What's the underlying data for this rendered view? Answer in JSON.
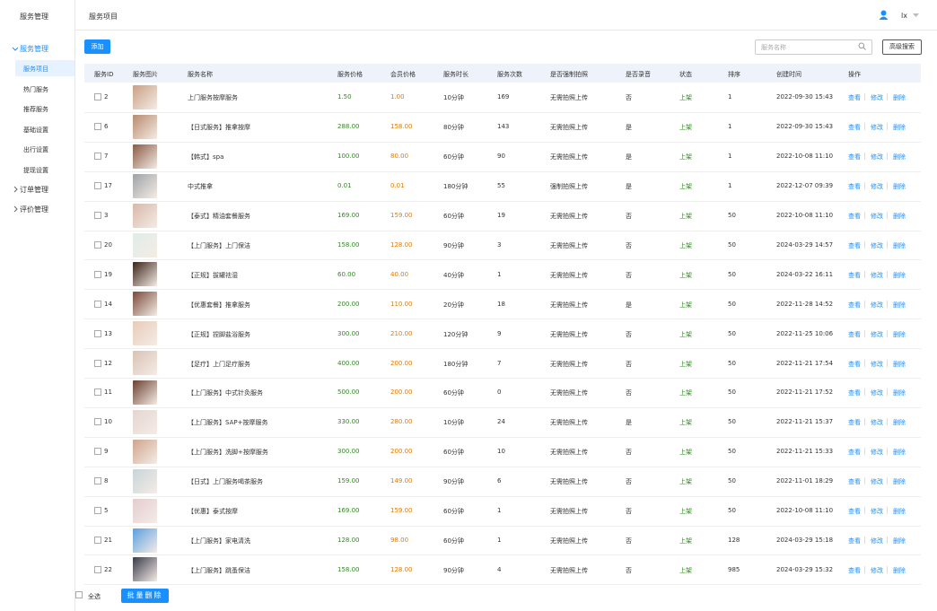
{
  "sidebar": {
    "title": "服务管理",
    "menu": [
      {
        "label": "服务管理",
        "children": [
          "服务项目",
          "热门服务",
          "推荐服务",
          "基础设置",
          "出行设置",
          "提现设置"
        ]
      },
      {
        "label": "订单管理"
      },
      {
        "label": "评价管理"
      }
    ]
  },
  "header": {
    "breadcrumb": "服务项目",
    "user": "lx"
  },
  "toolbar": {
    "add": "添加",
    "search_placeholder": "服务名称",
    "advanced_search": "高级搜索"
  },
  "table": {
    "columns": [
      "服务ID",
      "服务图片",
      "服务名称",
      "服务价格",
      "会员价格",
      "服务时长",
      "服务次数",
      "是否强制拍照",
      "是否录音",
      "状态",
      "排序",
      "创建时间",
      "操作"
    ],
    "rows": [
      [
        2,
        "上门服务按摩服务",
        "1.50",
        "1.00",
        "10分钟",
        169,
        "无需拍照上传",
        "否",
        "上架",
        1,
        "2022-09-30 15:43"
      ],
      [
        6,
        "【日式服务】推拿按摩",
        "288.00",
        "158.00",
        "80分钟",
        143,
        "无需拍照上传",
        "是",
        "上架",
        1,
        "2022-09-30 15:43"
      ],
      [
        7,
        "【韩式】spa",
        "100.00",
        "80.00",
        "60分钟",
        90,
        "无需拍照上传",
        "是",
        "上架",
        1,
        "2022-10-08 11:10"
      ],
      [
        17,
        "中式推拿",
        "0.01",
        "0.01",
        "180分钟",
        55,
        "强制拍照上传",
        "是",
        "上架",
        1,
        "2022-12-07 09:39"
      ],
      [
        3,
        "【泰式】精油套餐服务",
        "169.00",
        "159.00",
        "60分钟",
        19,
        "无需拍照上传",
        "否",
        "上架",
        50,
        "2022-10-08 11:10"
      ],
      [
        20,
        "【上门服务】上门保洁",
        "158.00",
        "128.00",
        "90分钟",
        3,
        "无需拍照上传",
        "否",
        "上架",
        50,
        "2024-03-29 14:57"
      ],
      [
        19,
        "【正规】拔罐祛湿",
        "60.00",
        "40.00",
        "40分钟",
        1,
        "无需拍照上传",
        "否",
        "上架",
        50,
        "2024-03-22 16:11"
      ],
      [
        14,
        "【优惠套餐】推拿服务",
        "200.00",
        "110.00",
        "20分钟",
        18,
        "无需拍照上传",
        "是",
        "上架",
        50,
        "2022-11-28 14:52"
      ],
      [
        13,
        "【正规】捏脚盐浴服务",
        "300.00",
        "210.00",
        "120分钟",
        9,
        "无需拍照上传",
        "否",
        "上架",
        50,
        "2022-11-25 10:06"
      ],
      [
        12,
        "【足疗】上门足疗服务",
        "400.00",
        "200.00",
        "180分钟",
        7,
        "无需拍照上传",
        "否",
        "上架",
        50,
        "2022-11-21 17:54"
      ],
      [
        11,
        "【上门服务】中式针灸服务",
        "500.00",
        "200.00",
        "60分钟",
        0,
        "无需拍照上传",
        "否",
        "上架",
        50,
        "2022-11-21 17:52"
      ],
      [
        10,
        "【上门服务】SAP+按摩服务",
        "330.00",
        "280.00",
        "10分钟",
        24,
        "无需拍照上传",
        "是",
        "上架",
        50,
        "2022-11-21 15:37"
      ],
      [
        9,
        "【上门服务】洗脚+按摩服务",
        "300.00",
        "200.00",
        "60分钟",
        10,
        "无需拍照上传",
        "否",
        "上架",
        50,
        "2022-11-21 15:33"
      ],
      [
        8,
        "【日式】上门服务喝茶服务",
        "159.00",
        "149.00",
        "90分钟",
        6,
        "无需拍照上传",
        "否",
        "上架",
        50,
        "2022-11-01 18:29"
      ],
      [
        5,
        "【优惠】泰式按摩",
        "169.00",
        "159.00",
        "60分钟",
        1,
        "无需拍照上传",
        "否",
        "上架",
        50,
        "2022-10-08 11:10"
      ],
      [
        21,
        "【上门服务】家电清洗",
        "128.00",
        "98.00",
        "60分钟",
        1,
        "无需拍照上传",
        "否",
        "上架",
        128,
        "2024-03-29 15:18"
      ],
      [
        22,
        "【上门服务】跳蚤保洁",
        "158.00",
        "128.00",
        "90分钟",
        4,
        "无需拍照上传",
        "否",
        "上架",
        985,
        "2024-03-29 15:32"
      ]
    ],
    "actions": [
      "查看",
      "修改",
      "删除"
    ]
  },
  "footer": {
    "select_all": "全选",
    "batch_delete": "批量删除"
  }
}
